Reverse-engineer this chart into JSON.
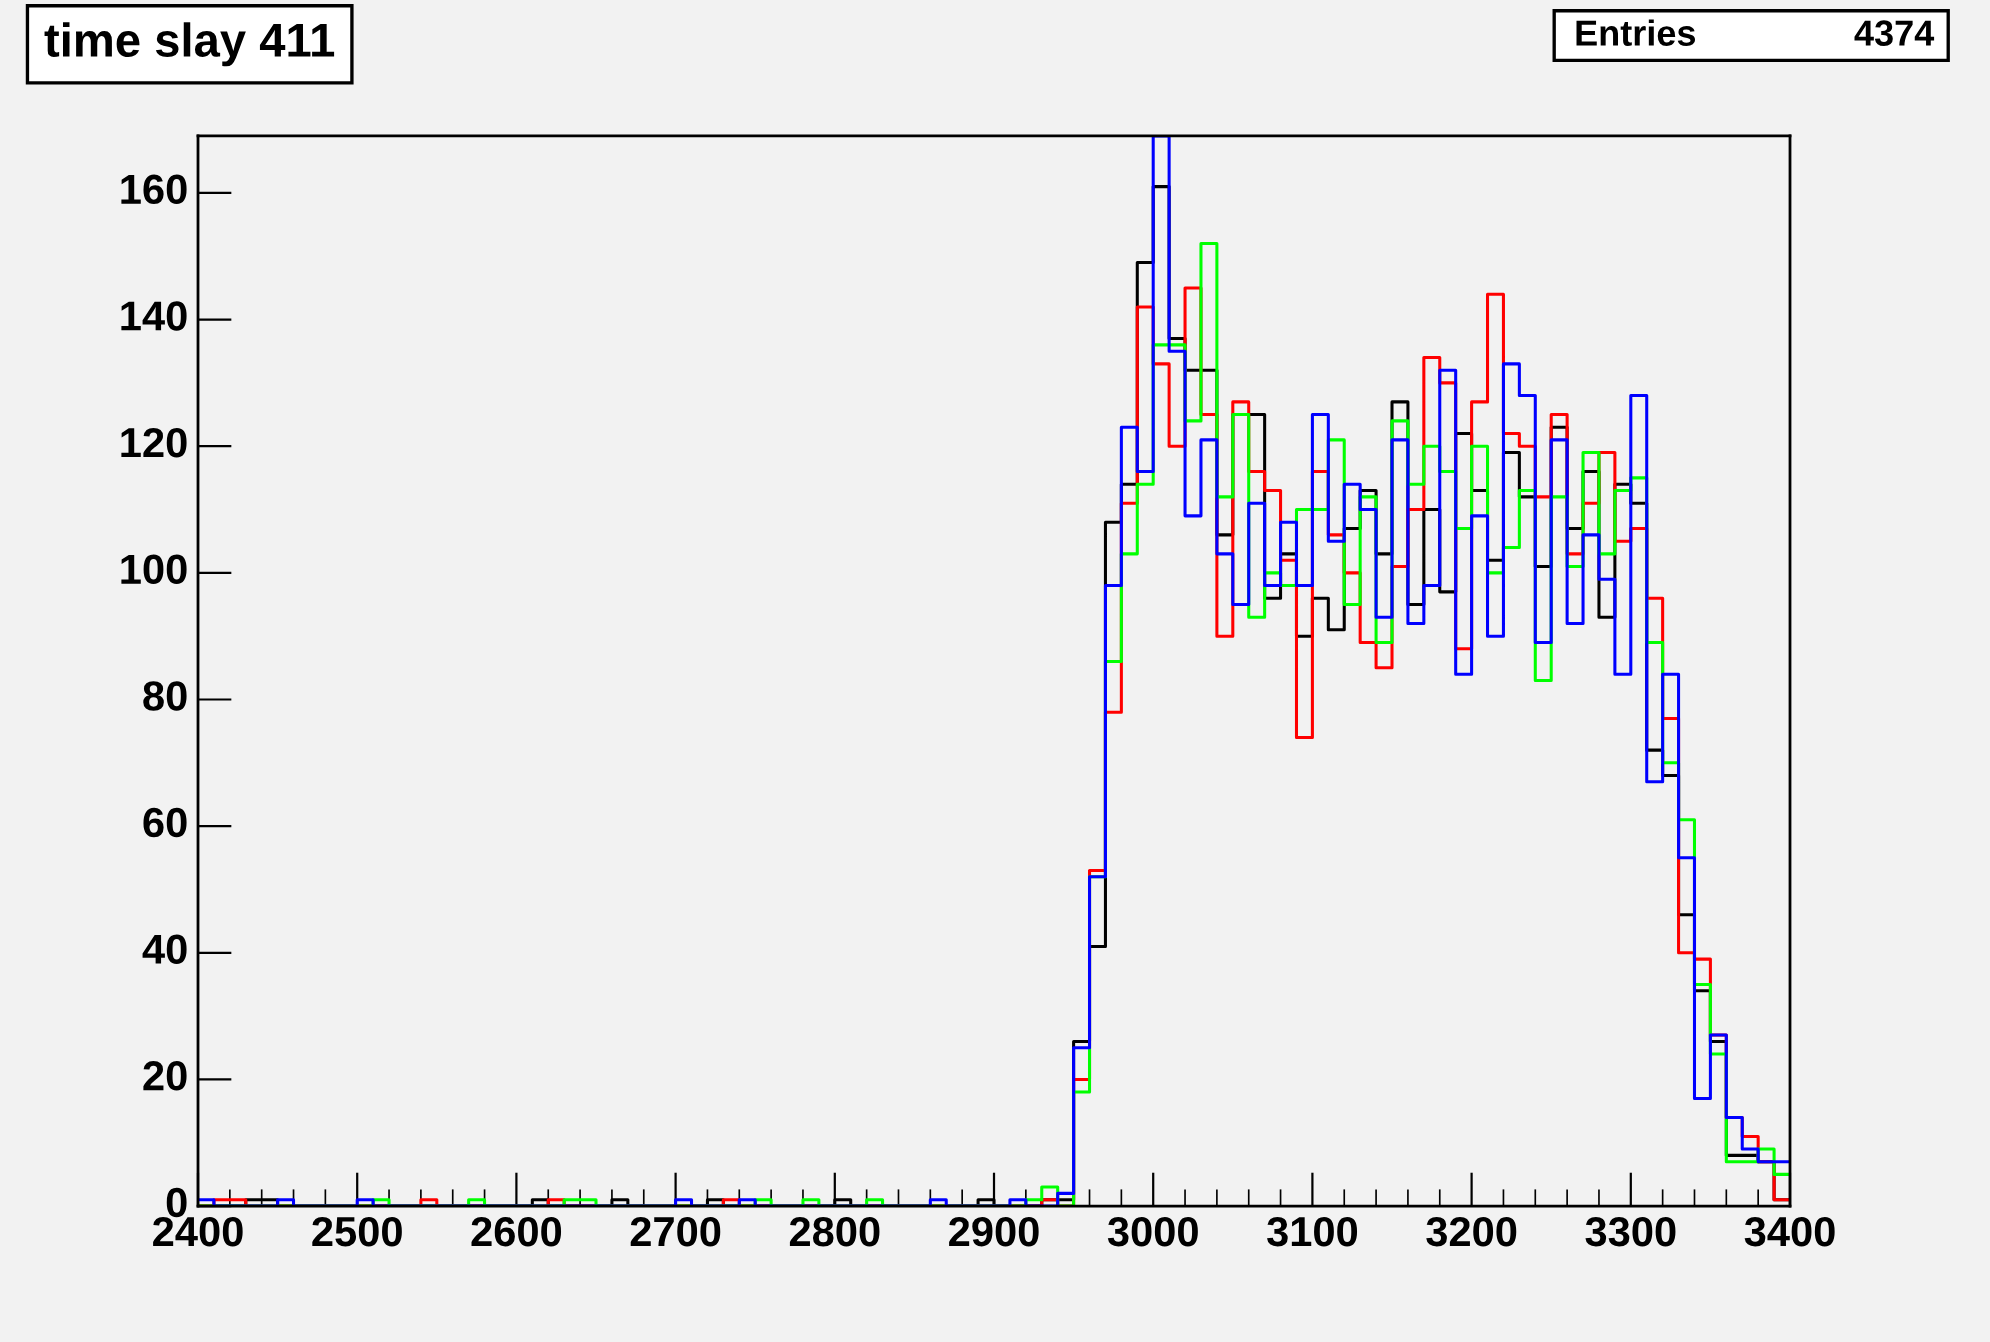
{
  "chart_data": {
    "type": "histogram",
    "title": "time slay 411",
    "annotations": [
      "Entries",
      "4374"
    ],
    "bins": [
      2400,
      2410,
      2420,
      2430,
      2440,
      2450,
      2460,
      2470,
      2480,
      2490,
      2500,
      2510,
      2520,
      2530,
      2540,
      2550,
      2560,
      2570,
      2580,
      2590,
      2600,
      2610,
      2620,
      2630,
      2640,
      2650,
      2660,
      2670,
      2680,
      2690,
      2700,
      2710,
      2720,
      2730,
      2740,
      2750,
      2760,
      2770,
      2780,
      2790,
      2800,
      2810,
      2820,
      2830,
      2840,
      2850,
      2860,
      2870,
      2880,
      2890,
      2900,
      2910,
      2920,
      2930,
      2940,
      2950,
      2960,
      2970,
      2980,
      2990,
      3000,
      3010,
      3020,
      3030,
      3040,
      3050,
      3060,
      3070,
      3080,
      3090,
      3100,
      3110,
      3120,
      3130,
      3140,
      3150,
      3160,
      3170,
      3180,
      3190,
      3200,
      3210,
      3220,
      3230,
      3240,
      3250,
      3260,
      3270,
      3280,
      3290,
      3300,
      3310,
      3320,
      3330,
      3340,
      3350,
      3360,
      3370,
      3380,
      3390,
      3400
    ],
    "series": [
      {
        "color": "#000000",
        "values": [
          0,
          0,
          0,
          1,
          1,
          0,
          0,
          0,
          0,
          0,
          0,
          0,
          0,
          0,
          0,
          0,
          0,
          0,
          0,
          0,
          0,
          1,
          0,
          0,
          0,
          0,
          1,
          0,
          0,
          0,
          0,
          0,
          1,
          0,
          0,
          0,
          0,
          0,
          0,
          0,
          1,
          0,
          0,
          0,
          0,
          0,
          0,
          0,
          0,
          1,
          0,
          0,
          0,
          1,
          1,
          26,
          41,
          108,
          114,
          149,
          161,
          137,
          132,
          132,
          106,
          125,
          125,
          96,
          103,
          90,
          96,
          91,
          107,
          113,
          103,
          127,
          95,
          110,
          97,
          122,
          113,
          102,
          119,
          112,
          101,
          123,
          107,
          116,
          93,
          114,
          111,
          72,
          68,
          46,
          34,
          26,
          8,
          8,
          7,
          1
        ]
      },
      {
        "color": "#ff0000",
        "values": [
          0,
          1,
          1,
          0,
          0,
          0,
          0,
          0,
          0,
          0,
          0,
          0,
          0,
          0,
          1,
          0,
          0,
          0,
          0,
          0,
          0,
          0,
          1,
          0,
          0,
          0,
          0,
          0,
          0,
          0,
          0,
          0,
          0,
          1,
          0,
          0,
          0,
          0,
          0,
          0,
          0,
          0,
          0,
          0,
          0,
          0,
          0,
          0,
          0,
          0,
          0,
          0,
          0,
          1,
          0,
          20,
          53,
          78,
          111,
          142,
          133,
          120,
          145,
          125,
          90,
          127,
          116,
          113,
          102,
          74,
          116,
          106,
          100,
          89,
          85,
          101,
          110,
          134,
          130,
          88,
          127,
          144,
          122,
          120,
          112,
          125,
          103,
          111,
          119,
          105,
          107,
          96,
          77,
          40,
          39,
          27,
          14,
          11,
          7,
          1
        ]
      },
      {
        "color": "#00ff00",
        "values": [
          0,
          0,
          0,
          0,
          0,
          0,
          0,
          0,
          0,
          0,
          0,
          1,
          0,
          0,
          0,
          0,
          0,
          1,
          0,
          0,
          0,
          0,
          0,
          1,
          1,
          0,
          0,
          0,
          0,
          0,
          0,
          0,
          0,
          0,
          0,
          1,
          0,
          0,
          1,
          0,
          0,
          0,
          1,
          0,
          0,
          0,
          0,
          0,
          0,
          0,
          0,
          0,
          1,
          3,
          0,
          18,
          52,
          86,
          103,
          114,
          136,
          136,
          124,
          152,
          112,
          125,
          93,
          100,
          98,
          110,
          110,
          121,
          95,
          112,
          89,
          124,
          114,
          120,
          116,
          107,
          120,
          100,
          104,
          113,
          83,
          112,
          101,
          119,
          103,
          113,
          115,
          89,
          70,
          61,
          35,
          24,
          7,
          7,
          9,
          5
        ]
      },
      {
        "color": "#0000ff",
        "values": [
          1,
          0,
          0,
          0,
          0,
          1,
          0,
          0,
          0,
          0,
          1,
          0,
          0,
          0,
          0,
          0,
          0,
          0,
          0,
          0,
          0,
          0,
          0,
          0,
          0,
          0,
          0,
          0,
          0,
          0,
          1,
          0,
          0,
          0,
          1,
          0,
          0,
          0,
          0,
          0,
          0,
          0,
          0,
          0,
          0,
          0,
          1,
          0,
          0,
          0,
          0,
          1,
          0,
          0,
          2,
          25,
          52,
          98,
          123,
          116,
          169,
          135,
          109,
          121,
          103,
          95,
          111,
          98,
          108,
          98,
          125,
          105,
          114,
          110,
          93,
          121,
          92,
          98,
          132,
          84,
          109,
          90,
          133,
          128,
          89,
          121,
          92,
          106,
          99,
          84,
          128,
          67,
          84,
          55,
          17,
          27,
          14,
          9,
          7,
          7
        ]
      }
    ],
    "xlim": [
      2400,
      3400
    ],
    "xticks": [
      2400,
      2500,
      2600,
      2700,
      2800,
      2900,
      3000,
      3100,
      3200,
      3300,
      3400
    ],
    "ylim": [
      0,
      169
    ],
    "yticks": [
      0,
      20,
      40,
      60,
      80,
      100,
      120,
      140,
      160
    ],
    "grid": false
  }
}
